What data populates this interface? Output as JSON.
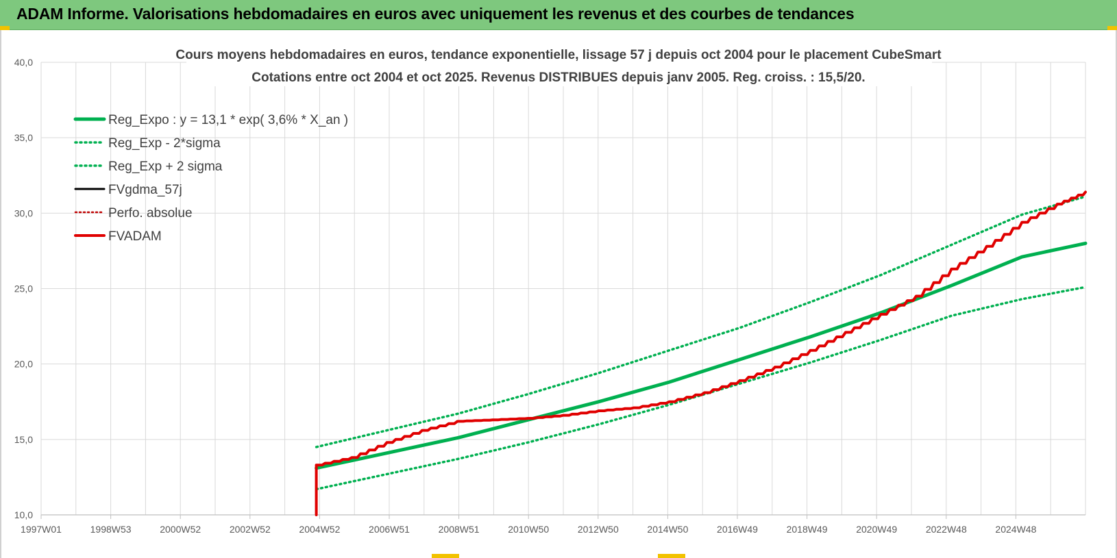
{
  "banner": {
    "title": "ADAM Informe. Valorisations hebdomadaires en euros avec uniquement les revenus et des courbes de tendances"
  },
  "chart_data": {
    "type": "line",
    "title": "Cours moyens hebdomadaires en euros, tendance exponentielle, lissage 57 j depuis oct 2004 pour le placement CubeSmart",
    "subtitle": "Cotations entre oct 2004 et oct 2025.  Revenus DISTRIBUES depuis janv 2005.  Reg. croiss. : 15,5/20.",
    "xlabel": "",
    "ylabel": "",
    "x_ticks": [
      "1997W01",
      "1998W53",
      "2000W52",
      "2002W52",
      "2004W52",
      "2006W51",
      "2008W51",
      "2010W50",
      "2012W50",
      "2014W50",
      "2016W49",
      "2018W49",
      "2020W49",
      "2022W48",
      "2024W48"
    ],
    "y_ticks": [
      "10,0",
      "15,0",
      "20,0",
      "25,0",
      "30,0",
      "35,0",
      "40,0"
    ],
    "xlim": [
      1997.0,
      2026.6
    ],
    "ylim": [
      10,
      40
    ],
    "grid": true,
    "legend_position": "top-left",
    "colors": {
      "reg_expo": "#00b050",
      "sigma": "#00b050",
      "fvgdma": "#000000",
      "perfo": "#c00000",
      "fvadam": "#e00000",
      "grid": "#d9d9d9"
    },
    "series": [
      {
        "name": "Reg_Expo : y = 13,1 * exp( 3,6% *  X_an )",
        "style": "solid",
        "x": [
          2004.8,
          2006.8,
          2008.8,
          2010.8,
          2012.8,
          2014.8,
          2016.8,
          2018.8,
          2020.8,
          2022.8,
          2024.8,
          2026.6
        ],
        "y": [
          13.1,
          14.1,
          15.1,
          16.3,
          17.5,
          18.8,
          20.3,
          21.8,
          23.4,
          25.2,
          27.1,
          28.0
        ]
      },
      {
        "name": "Reg_Exp - 2*sigma",
        "style": "dotted",
        "x": [
          2004.8,
          2006.8,
          2008.8,
          2010.8,
          2012.8,
          2014.8,
          2016.8,
          2018.8,
          2020.8,
          2022.8,
          2024.8,
          2026.6
        ],
        "y": [
          11.7,
          12.7,
          13.7,
          14.8,
          16.0,
          17.3,
          18.7,
          20.1,
          21.6,
          23.2,
          24.3,
          25.1
        ]
      },
      {
        "name": "Reg_Exp + 2 sigma",
        "style": "dotted",
        "x": [
          2004.8,
          2006.8,
          2008.8,
          2010.8,
          2012.8,
          2014.8,
          2016.8,
          2018.8,
          2020.8,
          2022.8,
          2024.8,
          2026.6
        ],
        "y": [
          14.5,
          15.6,
          16.7,
          18.0,
          19.4,
          20.9,
          22.4,
          24.1,
          25.9,
          27.9,
          29.9,
          31.1
        ]
      },
      {
        "name": "FVgdma_57j",
        "style": "solid",
        "x": [],
        "y": []
      },
      {
        "name": "Perfo. absolue",
        "style": "dotted",
        "x": [],
        "y": []
      },
      {
        "name": "FVADAM",
        "style": "solid",
        "x": [
          2004.8,
          2004.8,
          2005.8,
          2006.8,
          2007.8,
          2008.8,
          2009.8,
          2010.8,
          2011.8,
          2012.8,
          2013.8,
          2014.8,
          2015.8,
          2016.8,
          2017.8,
          2018.8,
          2019.8,
          2020.8,
          2021.8,
          2022.8,
          2023.8,
          2024.8,
          2025.8,
          2026.6
        ],
        "y": [
          10.0,
          13.3,
          13.8,
          14.8,
          15.6,
          16.2,
          16.3,
          16.4,
          16.6,
          16.9,
          17.1,
          17.5,
          18.1,
          18.9,
          19.8,
          20.9,
          22.1,
          23.3,
          24.5,
          26.3,
          27.8,
          29.4,
          30.6,
          31.4
        ]
      }
    ]
  }
}
